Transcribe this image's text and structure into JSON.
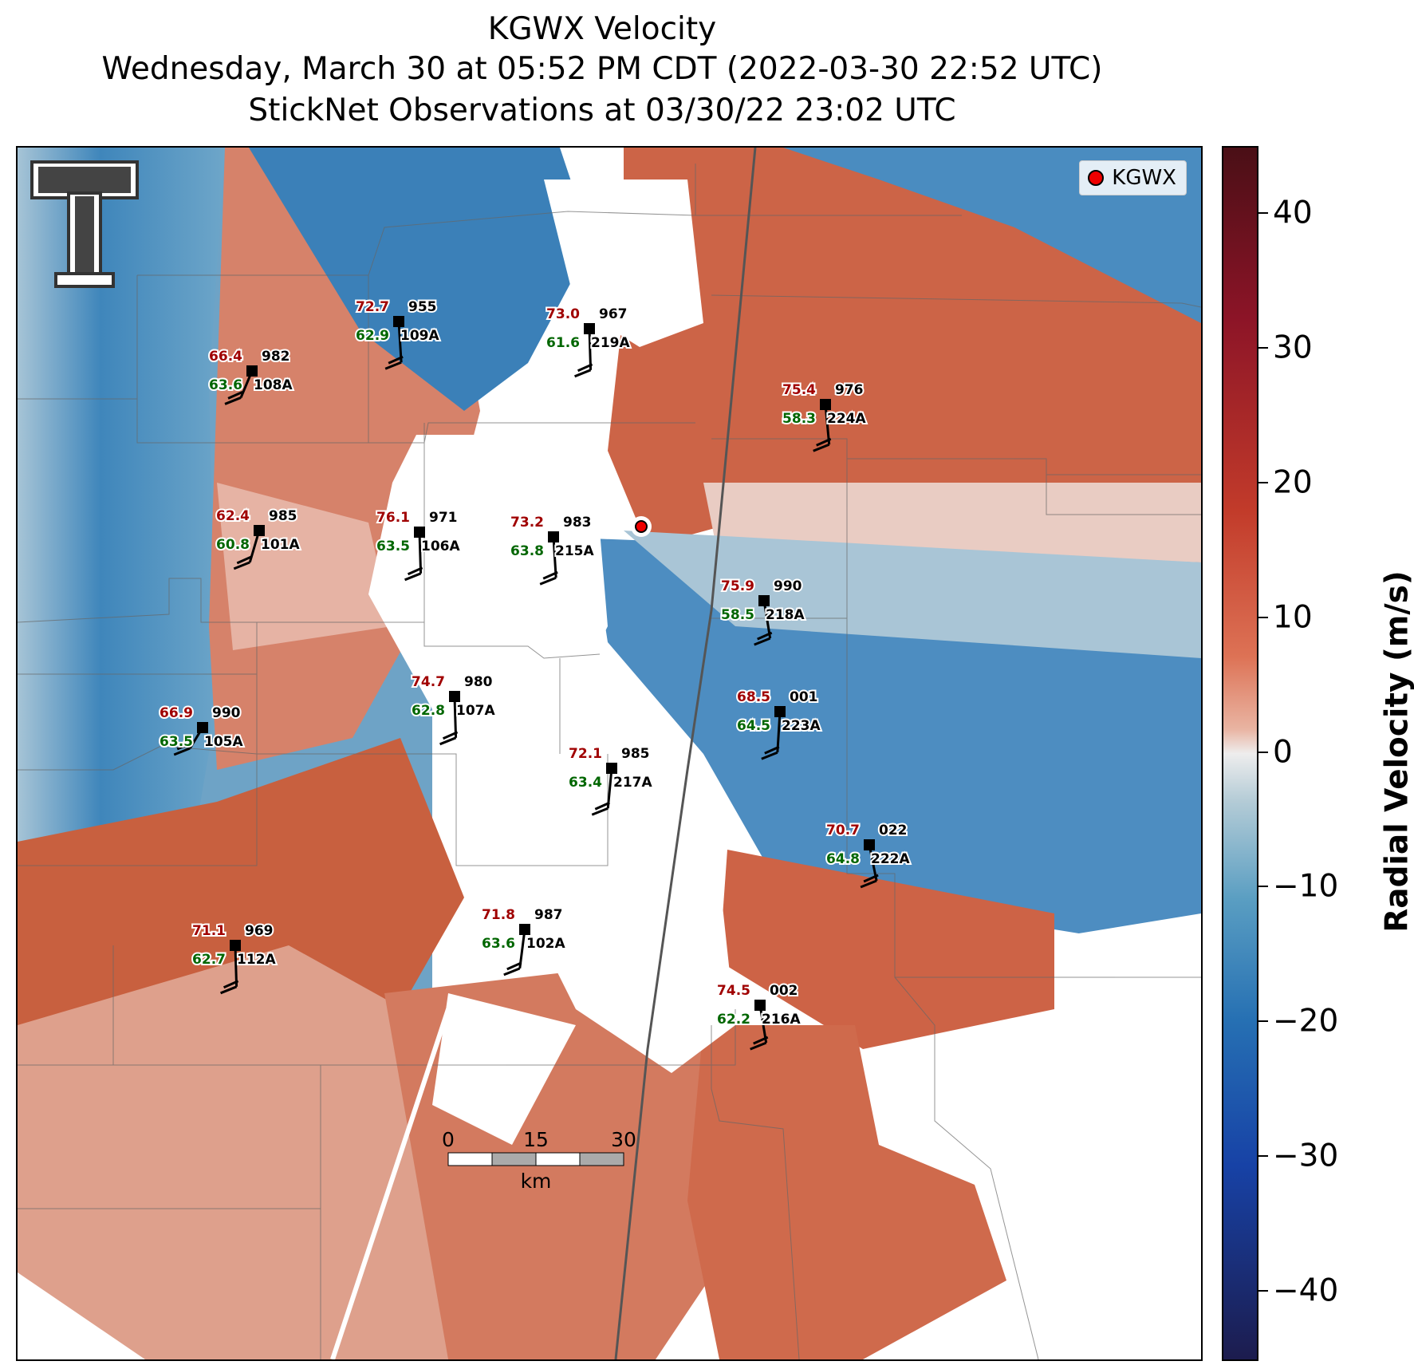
{
  "title": {
    "line1": "KGWX Velocity",
    "line2": "Wednesday, March 30 at 05:52 PM CDT (2022-03-30 22:52 UTC)",
    "line3": "StickNet Observations at 03/30/22 23:02 UTC"
  },
  "legend": {
    "label": "KGWX"
  },
  "colorbar": {
    "label": "Radial Velocity (m/s)",
    "range": [
      -45,
      45
    ],
    "ticks": [
      "40",
      "30",
      "20",
      "10",
      "0",
      "−10",
      "−20",
      "−30",
      "−40"
    ],
    "tick_values": [
      40,
      30,
      20,
      10,
      0,
      -10,
      -20,
      -30,
      -40
    ]
  },
  "scalebar": {
    "labels": [
      "0",
      "15",
      "30"
    ],
    "unit": "km"
  },
  "stations": [
    {
      "id": "108A",
      "temp": "66.4",
      "dew": "63.6",
      "pres": "982"
    },
    {
      "id": "109A",
      "temp": "72.7",
      "dew": "62.9",
      "pres": "955"
    },
    {
      "id": "219A",
      "temp": "73.0",
      "dew": "61.6",
      "pres": "967"
    },
    {
      "id": "224A",
      "temp": "75.4",
      "dew": "58.3",
      "pres": "976"
    },
    {
      "id": "101A",
      "temp": "62.4",
      "dew": "60.8",
      "pres": "985"
    },
    {
      "id": "106A",
      "temp": "76.1",
      "dew": "63.5",
      "pres": "971"
    },
    {
      "id": "215A",
      "temp": "73.2",
      "dew": "63.8",
      "pres": "983"
    },
    {
      "id": "218A",
      "temp": "75.9",
      "dew": "58.5",
      "pres": "990"
    },
    {
      "id": "107A",
      "temp": "74.7",
      "dew": "62.8",
      "pres": "980"
    },
    {
      "id": "105A",
      "temp": "66.9",
      "dew": "63.5",
      "pres": "990"
    },
    {
      "id": "223A",
      "temp": "68.5",
      "dew": "64.5",
      "pres": "001"
    },
    {
      "id": "217A",
      "temp": "72.1",
      "dew": "63.4",
      "pres": "985"
    },
    {
      "id": "222A",
      "temp": "70.7",
      "dew": "64.8",
      "pres": "022"
    },
    {
      "id": "102A",
      "temp": "71.8",
      "dew": "63.6",
      "pres": "987"
    },
    {
      "id": "112A",
      "temp": "71.1",
      "dew": "62.7",
      "pres": "969"
    },
    {
      "id": "216A",
      "temp": "74.5",
      "dew": "62.2",
      "pres": "002"
    }
  ]
}
